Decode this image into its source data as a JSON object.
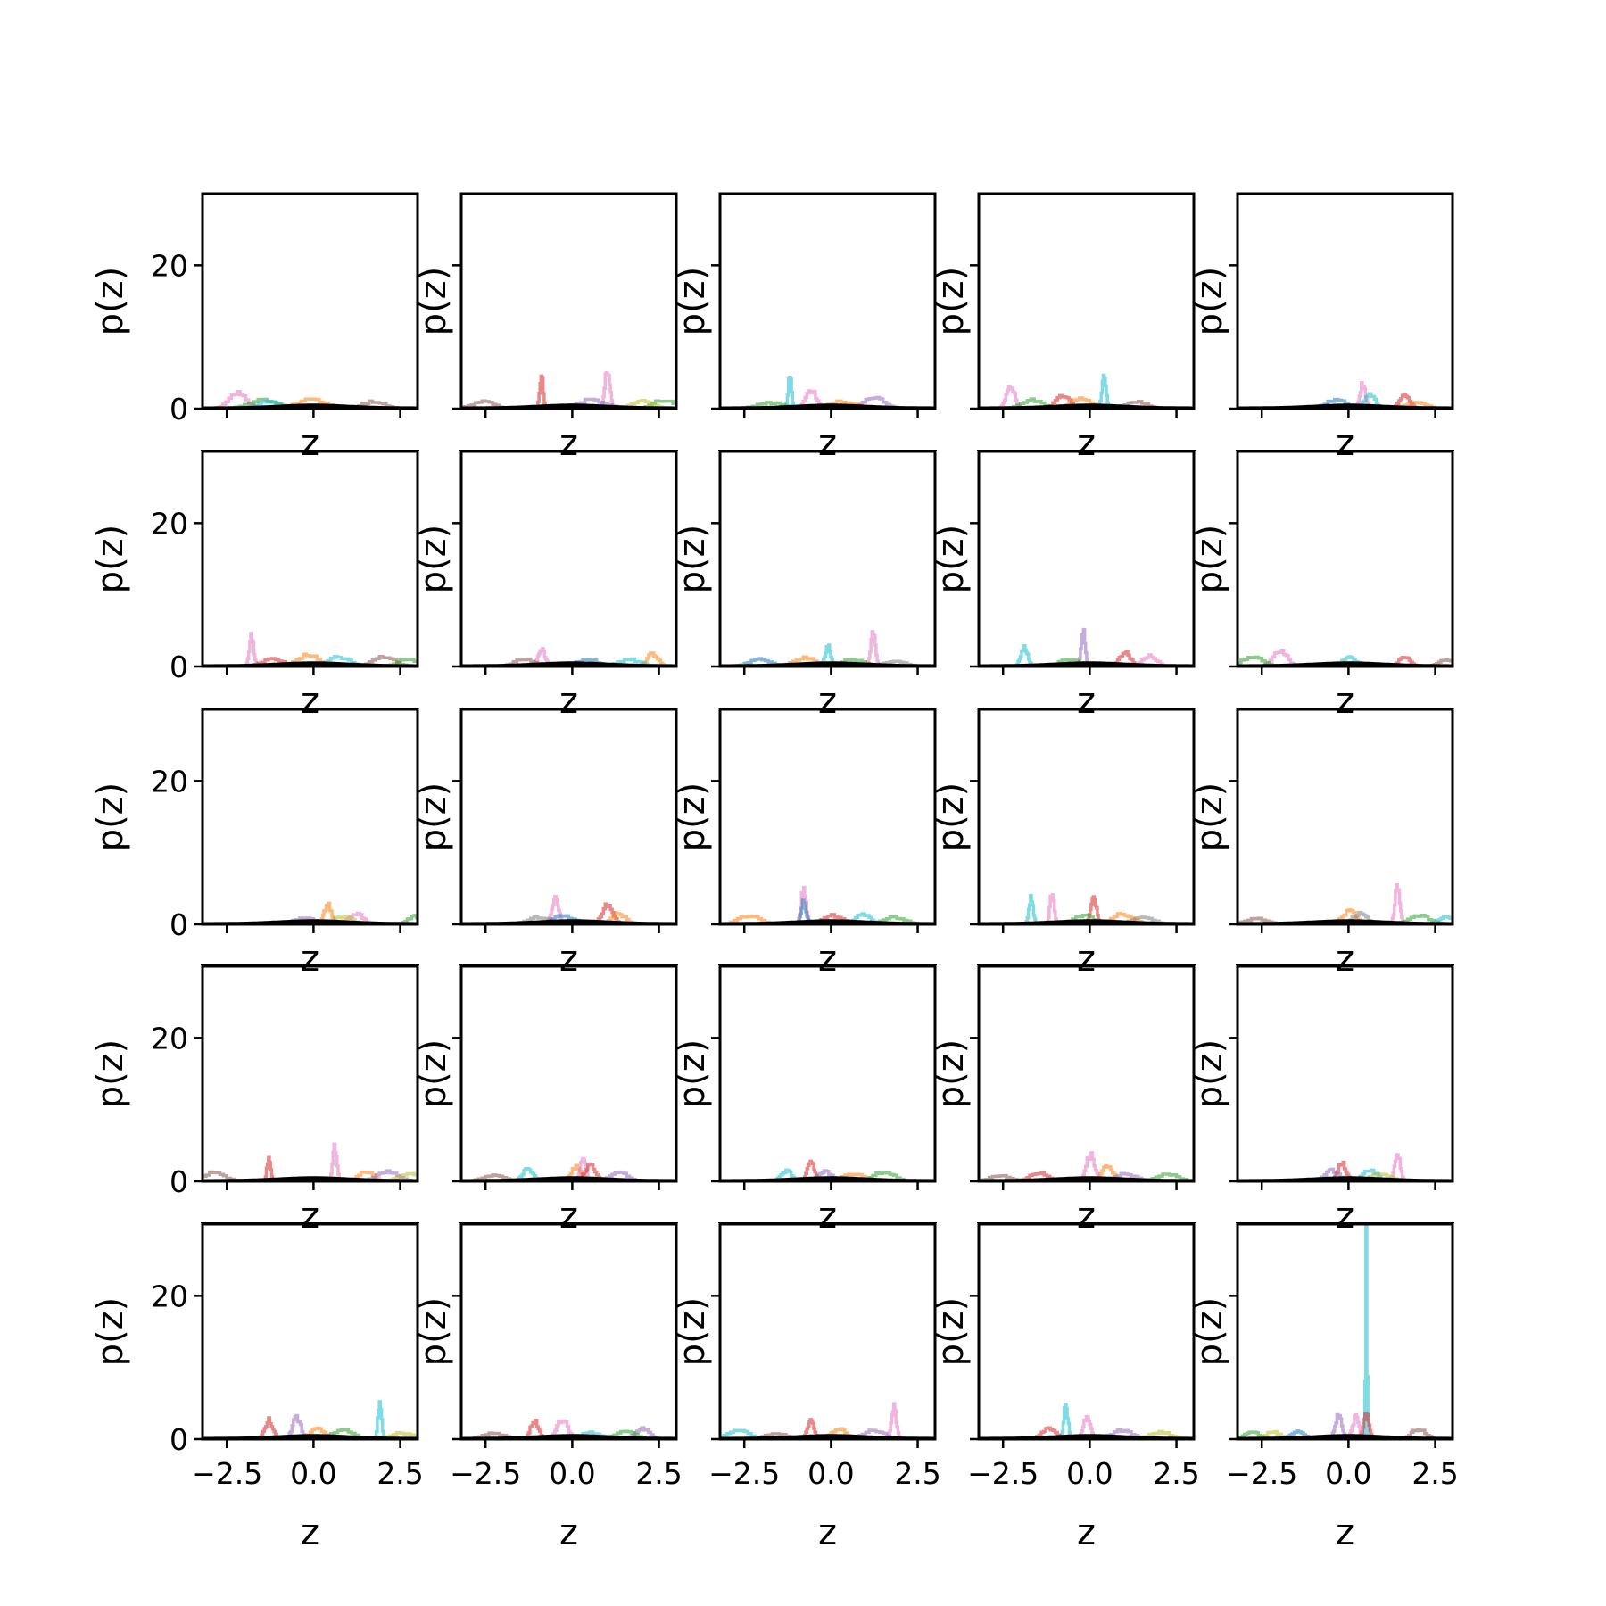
{
  "chart_data": {
    "type": "line",
    "layout": {
      "rows": 5,
      "cols": 5
    },
    "xlabel": "z",
    "ylabel": "p(z)",
    "xlim": [
      -3.2,
      3.0
    ],
    "ylim": [
      0,
      30
    ],
    "xticks": [
      -2.5,
      0.0,
      2.5
    ],
    "xtick_labels": [
      "−2.5",
      "0.0",
      "2.5"
    ],
    "yticks": [
      0,
      20
    ],
    "ytick_labels": [
      "0",
      "20"
    ],
    "grid": false,
    "legend": "none",
    "series_colors": [
      "#1f77b4",
      "#ff7f0e",
      "#2ca02c",
      "#d62728",
      "#9467bd",
      "#8c564b",
      "#e377c2",
      "#7f7f7f",
      "#bcbd22",
      "#17becf"
    ],
    "reference_curve": {
      "name": "",
      "color": "#000000",
      "description": "standard normal density"
    },
    "panels": [
      {
        "peaks": [
          [
            6,
            -2.2,
            2.2,
            0.25
          ],
          [
            2,
            -1.5,
            1.2,
            0.4
          ],
          [
            1,
            -0.1,
            1.3,
            0.4
          ],
          [
            5,
            1.7,
            1.0,
            0.3
          ],
          [
            9,
            -1.3,
            1.0,
            0.3
          ]
        ]
      },
      {
        "peaks": [
          [
            3,
            -0.9,
            4.6,
            0.05
          ],
          [
            6,
            1.0,
            5.6,
            0.07
          ],
          [
            5,
            -2.6,
            1.0,
            0.3
          ],
          [
            2,
            2.6,
            1.2,
            0.3
          ],
          [
            4,
            0.5,
            1.2,
            0.4
          ],
          [
            8,
            2.0,
            1.0,
            0.3
          ]
        ]
      },
      {
        "peaks": [
          [
            9,
            -1.2,
            4.5,
            0.05
          ],
          [
            6,
            -0.6,
            2.7,
            0.15
          ],
          [
            4,
            1.2,
            1.5,
            0.3
          ],
          [
            2,
            -1.8,
            0.8,
            0.4
          ],
          [
            1,
            0.3,
            1.0,
            0.4
          ]
        ]
      },
      {
        "peaks": [
          [
            6,
            -2.3,
            3.2,
            0.12
          ],
          [
            9,
            0.4,
            4.6,
            0.06
          ],
          [
            3,
            -0.8,
            1.8,
            0.2
          ],
          [
            2,
            -1.7,
            1.2,
            0.3
          ],
          [
            1,
            -0.3,
            1.4,
            0.3
          ],
          [
            5,
            1.3,
            1.0,
            0.3
          ]
        ]
      },
      {
        "peaks": [
          [
            6,
            0.4,
            3.5,
            0.08
          ],
          [
            3,
            1.6,
            1.8,
            0.15
          ],
          [
            9,
            0.6,
            2.0,
            0.15
          ],
          [
            0,
            -0.4,
            1.2,
            0.3
          ],
          [
            1,
            1.9,
            0.8,
            0.3
          ]
        ]
      },
      {
        "peaks": [
          [
            6,
            -1.8,
            4.5,
            0.06
          ],
          [
            5,
            2.0,
            1.4,
            0.3
          ],
          [
            1,
            -0.2,
            1.6,
            0.3
          ],
          [
            9,
            0.7,
            1.3,
            0.3
          ],
          [
            2,
            2.7,
            1.0,
            0.3
          ],
          [
            3,
            -1.2,
            1.0,
            0.3
          ]
        ]
      },
      {
        "peaks": [
          [
            6,
            -0.9,
            2.4,
            0.1
          ],
          [
            1,
            2.3,
            1.8,
            0.15
          ],
          [
            9,
            1.6,
            1.0,
            0.3
          ],
          [
            5,
            -1.4,
            1.0,
            0.3
          ],
          [
            0,
            0.4,
            1.0,
            0.3
          ]
        ]
      },
      {
        "peaks": [
          [
            6,
            1.2,
            4.5,
            0.07
          ],
          [
            9,
            -0.1,
            2.8,
            0.08
          ],
          [
            0,
            -2.1,
            1.0,
            0.3
          ],
          [
            1,
            -0.8,
            1.2,
            0.3
          ],
          [
            2,
            0.6,
            1.0,
            0.3
          ],
          [
            7,
            1.8,
            0.8,
            0.3
          ]
        ]
      },
      {
        "peaks": [
          [
            4,
            -0.2,
            4.8,
            0.06
          ],
          [
            9,
            -1.9,
            2.6,
            0.1
          ],
          [
            3,
            1.0,
            2.0,
            0.15
          ],
          [
            6,
            1.7,
            1.5,
            0.2
          ],
          [
            2,
            -0.6,
            1.0,
            0.3
          ]
        ]
      },
      {
        "peaks": [
          [
            6,
            -2.0,
            2.2,
            0.2
          ],
          [
            3,
            1.6,
            1.4,
            0.15
          ],
          [
            2,
            -2.8,
            1.3,
            0.3
          ],
          [
            9,
            0.0,
            1.2,
            0.2
          ],
          [
            5,
            2.8,
            1.0,
            0.2
          ]
        ]
      },
      {
        "peaks": [
          [
            1,
            0.4,
            2.8,
            0.1
          ],
          [
            6,
            1.2,
            1.5,
            0.2
          ],
          [
            2,
            2.9,
            1.1,
            0.2
          ],
          [
            8,
            0.8,
            1.0,
            0.3
          ],
          [
            4,
            -0.3,
            0.9,
            0.3
          ]
        ]
      },
      {
        "peaks": [
          [
            6,
            -0.5,
            3.4,
            0.1
          ],
          [
            3,
            1.0,
            2.8,
            0.15
          ],
          [
            0,
            -0.3,
            1.2,
            0.3
          ],
          [
            1,
            1.3,
            1.5,
            0.2
          ],
          [
            7,
            -1.0,
            1.0,
            0.3
          ]
        ]
      },
      {
        "peaks": [
          [
            6,
            -0.8,
            5.0,
            0.07
          ],
          [
            0,
            -0.8,
            3.3,
            0.07
          ],
          [
            1,
            -2.4,
            1.2,
            0.3
          ],
          [
            2,
            1.8,
            1.0,
            0.3
          ],
          [
            9,
            0.9,
            1.4,
            0.2
          ],
          [
            3,
            0.0,
            1.2,
            0.3
          ]
        ]
      },
      {
        "peaks": [
          [
            9,
            -1.7,
            3.6,
            0.06
          ],
          [
            6,
            -1.1,
            4.5,
            0.06
          ],
          [
            3,
            0.1,
            3.8,
            0.08
          ],
          [
            1,
            0.9,
            1.4,
            0.3
          ],
          [
            2,
            -0.2,
            1.2,
            0.3
          ],
          [
            7,
            1.5,
            1.0,
            0.3
          ]
        ]
      },
      {
        "peaks": [
          [
            6,
            1.4,
            5.4,
            0.07
          ],
          [
            1,
            0.0,
            1.8,
            0.2
          ],
          [
            7,
            0.3,
            1.5,
            0.2
          ],
          [
            2,
            2.0,
            1.2,
            0.3
          ],
          [
            9,
            2.8,
            1.0,
            0.2
          ],
          [
            5,
            -2.7,
            0.8,
            0.3
          ]
        ]
      },
      {
        "peaks": [
          [
            3,
            -1.3,
            3.4,
            0.05
          ],
          [
            6,
            0.6,
            4.8,
            0.06
          ],
          [
            5,
            -2.9,
            1.2,
            0.3
          ],
          [
            1,
            1.5,
            1.4,
            0.2
          ],
          [
            4,
            2.1,
            1.3,
            0.3
          ],
          [
            8,
            2.7,
            1.0,
            0.3
          ]
        ]
      },
      {
        "peaks": [
          [
            9,
            -1.3,
            1.7,
            0.15
          ],
          [
            1,
            0.1,
            2.0,
            0.15
          ],
          [
            6,
            0.3,
            3.4,
            0.08
          ],
          [
            3,
            0.5,
            2.3,
            0.15
          ],
          [
            4,
            1.3,
            1.3,
            0.25
          ],
          [
            5,
            -2.3,
            0.8,
            0.3
          ]
        ]
      },
      {
        "peaks": [
          [
            3,
            -0.6,
            2.8,
            0.1
          ],
          [
            9,
            -1.3,
            1.5,
            0.15
          ],
          [
            4,
            -0.2,
            1.4,
            0.2
          ],
          [
            2,
            1.5,
            1.3,
            0.3
          ],
          [
            1,
            0.6,
            1.0,
            0.3
          ]
        ]
      },
      {
        "peaks": [
          [
            6,
            0.0,
            3.8,
            0.12
          ],
          [
            1,
            0.5,
            2.2,
            0.15
          ],
          [
            3,
            -1.5,
            1.2,
            0.25
          ],
          [
            5,
            -2.6,
            0.8,
            0.3
          ],
          [
            2,
            2.2,
            1.0,
            0.3
          ],
          [
            4,
            1.0,
            1.0,
            0.3
          ]
        ]
      },
      {
        "peaks": [
          [
            6,
            1.4,
            3.8,
            0.08
          ],
          [
            3,
            -0.2,
            2.5,
            0.12
          ],
          [
            4,
            -0.5,
            1.5,
            0.2
          ],
          [
            9,
            0.6,
            1.6,
            0.2
          ],
          [
            8,
            0.9,
            1.0,
            0.3
          ]
        ]
      },
      {
        "peaks": [
          [
            9,
            1.9,
            5.5,
            0.05
          ],
          [
            3,
            -1.3,
            2.6,
            0.12
          ],
          [
            4,
            -0.5,
            3.0,
            0.12
          ],
          [
            1,
            0.1,
            1.5,
            0.2
          ],
          [
            2,
            0.8,
            1.2,
            0.3
          ],
          [
            8,
            2.5,
            0.9,
            0.3
          ]
        ]
      },
      {
        "peaks": [
          [
            6,
            -0.3,
            2.8,
            0.15
          ],
          [
            3,
            -1.1,
            2.5,
            0.12
          ],
          [
            4,
            2.0,
            1.4,
            0.2
          ],
          [
            5,
            -2.3,
            0.8,
            0.3
          ],
          [
            2,
            1.5,
            1.0,
            0.3
          ],
          [
            9,
            0.5,
            0.9,
            0.3
          ]
        ]
      },
      {
        "peaks": [
          [
            6,
            1.8,
            4.5,
            0.07
          ],
          [
            3,
            -0.6,
            2.5,
            0.1
          ],
          [
            9,
            -2.7,
            1.2,
            0.3
          ],
          [
            1,
            0.2,
            1.5,
            0.2
          ],
          [
            4,
            1.2,
            1.2,
            0.3
          ],
          [
            5,
            -1.6,
            0.8,
            0.3
          ]
        ]
      },
      {
        "peaks": [
          [
            9,
            -0.7,
            4.8,
            0.06
          ],
          [
            6,
            -0.1,
            3.2,
            0.1
          ],
          [
            3,
            -1.2,
            1.4,
            0.2
          ],
          [
            4,
            0.9,
            1.2,
            0.3
          ],
          [
            8,
            2.0,
            1.0,
            0.3
          ]
        ]
      },
      {
        "peaks": [
          [
            9,
            0.5,
            28.5,
            0.02
          ],
          [
            3,
            0.5,
            3.5,
            0.08
          ],
          [
            4,
            -0.3,
            3.2,
            0.1
          ],
          [
            6,
            0.2,
            3.0,
            0.1
          ],
          [
            5,
            2.0,
            1.4,
            0.2
          ],
          [
            2,
            -2.8,
            1.0,
            0.2
          ],
          [
            8,
            -2.2,
            1.0,
            0.2
          ],
          [
            0,
            -1.5,
            1.0,
            0.2
          ]
        ]
      }
    ]
  }
}
